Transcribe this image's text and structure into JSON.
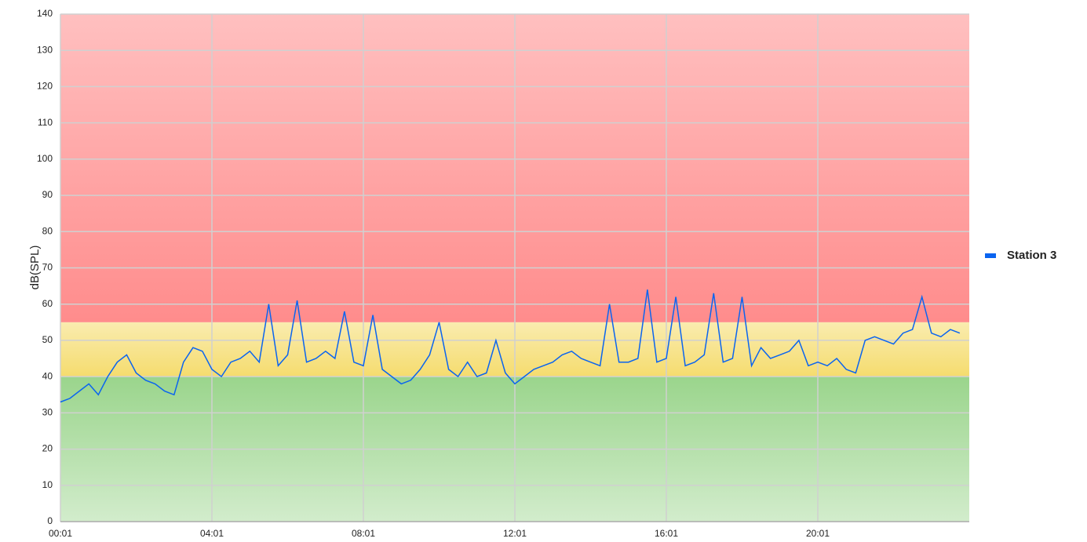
{
  "chart_data": {
    "type": "line",
    "y_label": "dB(SPL)",
    "categories": [
      "00:01",
      null,
      null,
      null,
      null,
      null,
      null,
      null,
      null,
      null,
      null,
      null,
      null,
      null,
      null,
      null,
      "04:01",
      null,
      null,
      null,
      null,
      null,
      null,
      null,
      null,
      null,
      null,
      null,
      null,
      null,
      null,
      null,
      "08:01",
      null,
      null,
      null,
      null,
      null,
      null,
      null,
      null,
      null,
      null,
      null,
      null,
      null,
      null,
      null,
      "12:01",
      null,
      null,
      null,
      null,
      null,
      null,
      null,
      null,
      null,
      null,
      null,
      null,
      null,
      null,
      null,
      "16:01",
      null,
      null,
      null,
      null,
      null,
      null,
      null,
      null,
      null,
      null,
      null,
      null,
      null,
      null,
      null,
      "20:01",
      null,
      null,
      null,
      null,
      null,
      null,
      null,
      null,
      null,
      null,
      null,
      null,
      null,
      null,
      null
    ],
    "series": [
      {
        "name": "Station 3",
        "color": "#0a64f0",
        "values": [
          33,
          34,
          36,
          38,
          35,
          40,
          44,
          46,
          41,
          39,
          38,
          36,
          35,
          44,
          48,
          47,
          42,
          40,
          44,
          45,
          47,
          44,
          60,
          43,
          46,
          61,
          44,
          45,
          47,
          45,
          58,
          44,
          43,
          57,
          42,
          40,
          38,
          39,
          42,
          46,
          55,
          42,
          40,
          44,
          40,
          41,
          50,
          41,
          38,
          40,
          42,
          43,
          44,
          46,
          47,
          45,
          44,
          43,
          60,
          44,
          44,
          45,
          64,
          44,
          45,
          62,
          43,
          44,
          46,
          63,
          44,
          45,
          62,
          43,
          48,
          45,
          46,
          47,
          50,
          43,
          44,
          43,
          45,
          42,
          41,
          50,
          51,
          50,
          49,
          52,
          53,
          62,
          52,
          51,
          53,
          52
        ]
      }
    ],
    "ylim": [
      0,
      140
    ],
    "yticks": [
      0,
      10,
      20,
      30,
      40,
      50,
      60,
      70,
      80,
      90,
      100,
      110,
      120,
      130,
      140
    ],
    "bands": [
      {
        "from": 0,
        "to": 40,
        "color": "#8fd07f"
      },
      {
        "from": 40,
        "to": 55,
        "color": "#f5dc6e"
      },
      {
        "from": 55,
        "to": 140,
        "color": "#ff8c8c"
      }
    ],
    "grid": true,
    "legend": "right"
  }
}
